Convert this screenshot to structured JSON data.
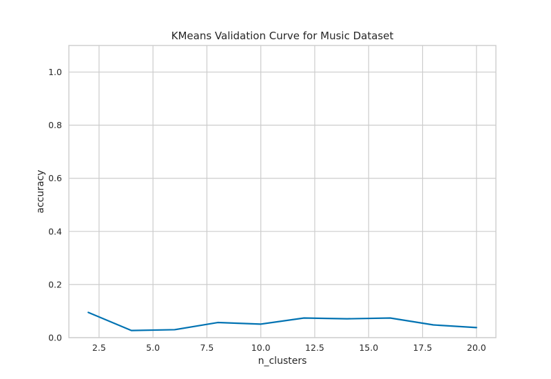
{
  "chart_data": {
    "type": "line",
    "title": "KMeans Validation Curve for Music Dataset",
    "xlabel": "n_clusters",
    "ylabel": "accuracy",
    "x": [
      2,
      4,
      6,
      8,
      10,
      12,
      14,
      16,
      18,
      20
    ],
    "series": [
      {
        "values": [
          0.095,
          0.027,
          0.03,
          0.057,
          0.051,
          0.074,
          0.071,
          0.074,
          0.048,
          0.038
        ],
        "color": "#0072b2"
      }
    ],
    "xlim": [
      1.1,
      20.9
    ],
    "ylim": [
      0,
      1.1
    ],
    "xticks": [
      2.5,
      5.0,
      7.5,
      10.0,
      12.5,
      15.0,
      17.5,
      20.0
    ],
    "xtick_labels": [
      "2.5",
      "5.0",
      "7.5",
      "10.0",
      "12.5",
      "15.0",
      "17.5",
      "20.0"
    ],
    "yticks": [
      0.0,
      0.2,
      0.4,
      0.6,
      0.8,
      1.0
    ],
    "ytick_labels": [
      "0.0",
      "0.2",
      "0.4",
      "0.6",
      "0.8",
      "1.0"
    ],
    "grid": true,
    "grid_color": "#cccccc",
    "frame_color": "#cccccc"
  }
}
